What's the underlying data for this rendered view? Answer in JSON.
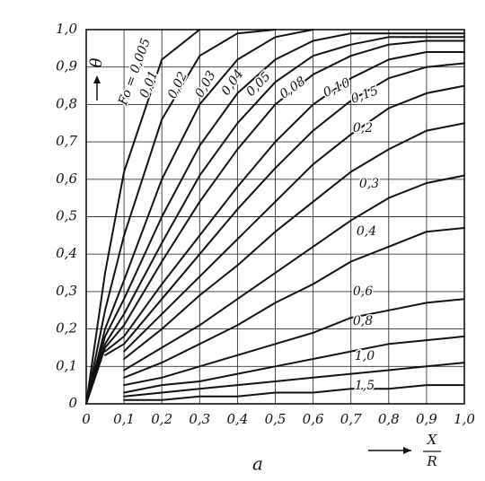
{
  "chart_data": {
    "type": "line",
    "x_label": "a",
    "x_fraction": {
      "numerator": "X",
      "denominator": "R"
    },
    "y_label": "θ",
    "x": [
      0,
      0.05,
      0.1,
      0.2,
      0.3,
      0.4,
      0.5,
      0.6,
      0.7,
      0.8,
      0.9,
      1.0
    ],
    "xlim": [
      0,
      1.0
    ],
    "ylim": [
      0,
      1.0
    ],
    "xticks": [
      {
        "value": 0,
        "label": "0"
      },
      {
        "value": 0.1,
        "label": "0,1"
      },
      {
        "value": 0.2,
        "label": "0,2"
      },
      {
        "value": 0.3,
        "label": "0,3"
      },
      {
        "value": 0.4,
        "label": "0,4"
      },
      {
        "value": 0.5,
        "label": "0,5"
      },
      {
        "value": 0.6,
        "label": "0,6"
      },
      {
        "value": 0.7,
        "label": "0,7"
      },
      {
        "value": 0.8,
        "label": "0,8"
      },
      {
        "value": 0.9,
        "label": "0,9"
      },
      {
        "value": 1.0,
        "label": "1,0"
      }
    ],
    "yticks": [
      {
        "value": 0,
        "label": "0"
      },
      {
        "value": 0.1,
        "label": "0,1"
      },
      {
        "value": 0.2,
        "label": "0,2"
      },
      {
        "value": 0.3,
        "label": "0,3"
      },
      {
        "value": 0.4,
        "label": "0,4"
      },
      {
        "value": 0.5,
        "label": "0,5"
      },
      {
        "value": 0.6,
        "label": "0,6"
      },
      {
        "value": 0.7,
        "label": "0,7"
      },
      {
        "value": 0.8,
        "label": "0,8"
      },
      {
        "value": 0.9,
        "label": "0,9"
      },
      {
        "value": 1.0,
        "label": "1,0"
      }
    ],
    "grid": true,
    "color": "#111111",
    "series": [
      {
        "name": "Fo = 0,005",
        "values": [
          0,
          0.35,
          0.62,
          0.92,
          1.0,
          null,
          null,
          null,
          null,
          null,
          null,
          null
        ]
      },
      {
        "name": "0,01",
        "values": [
          0,
          0.25,
          0.45,
          0.76,
          0.93,
          0.99,
          1.0,
          null,
          null,
          null,
          null,
          null
        ]
      },
      {
        "name": "0,02",
        "values": [
          0,
          0.2,
          0.33,
          0.6,
          0.8,
          0.92,
          0.98,
          1.0,
          null,
          null,
          null,
          null
        ]
      },
      {
        "name": "0,03",
        "values": [
          0,
          0.18,
          0.28,
          0.5,
          0.69,
          0.83,
          0.92,
          0.97,
          0.99,
          0.99,
          0.99,
          0.99
        ]
      },
      {
        "name": "0,04",
        "values": [
          0,
          0.16,
          0.24,
          0.43,
          0.61,
          0.75,
          0.86,
          0.93,
          0.96,
          0.98,
          0.98,
          0.98
        ]
      },
      {
        "name": "0,05",
        "values": [
          0,
          0.15,
          0.21,
          0.38,
          0.54,
          0.68,
          0.8,
          0.88,
          0.93,
          0.96,
          0.97,
          0.97
        ]
      },
      {
        "name": "0,08",
        "values": [
          null,
          0.14,
          0.18,
          0.32,
          0.45,
          0.58,
          0.7,
          0.8,
          0.87,
          0.92,
          0.94,
          0.94
        ]
      },
      {
        "name": "0,10",
        "values": [
          null,
          0.13,
          0.16,
          0.28,
          0.4,
          0.52,
          0.63,
          0.73,
          0.81,
          0.87,
          0.9,
          0.91
        ]
      },
      {
        "name": "0,15",
        "values": [
          null,
          null,
          0.14,
          0.24,
          0.34,
          0.44,
          0.54,
          0.64,
          0.72,
          0.79,
          0.83,
          0.85
        ]
      },
      {
        "name": "0,2",
        "values": [
          null,
          null,
          0.12,
          0.2,
          0.29,
          0.37,
          0.46,
          0.54,
          0.62,
          0.68,
          0.73,
          0.75
        ]
      },
      {
        "name": "0,3",
        "values": [
          null,
          null,
          0.09,
          0.15,
          0.21,
          0.28,
          0.35,
          0.42,
          0.49,
          0.55,
          0.59,
          0.61
        ]
      },
      {
        "name": "0,4",
        "values": [
          null,
          null,
          0.07,
          0.11,
          0.16,
          0.21,
          0.27,
          0.32,
          0.38,
          0.42,
          0.46,
          0.47
        ]
      },
      {
        "name": "0,6",
        "values": [
          null,
          null,
          0.05,
          0.07,
          0.1,
          0.13,
          0.16,
          0.19,
          0.23,
          0.25,
          0.27,
          0.28
        ]
      },
      {
        "name": "0,8",
        "values": [
          null,
          null,
          0.03,
          0.05,
          0.06,
          0.08,
          0.1,
          0.12,
          0.14,
          0.16,
          0.17,
          0.18
        ]
      },
      {
        "name": "1,0",
        "values": [
          null,
          null,
          0.02,
          0.03,
          0.04,
          0.05,
          0.06,
          0.07,
          0.08,
          0.09,
          0.1,
          0.11
        ]
      },
      {
        "name": "1,5",
        "values": [
          null,
          null,
          0.01,
          0.01,
          0.02,
          0.02,
          0.03,
          0.03,
          0.04,
          0.04,
          0.05,
          0.05
        ]
      }
    ]
  }
}
